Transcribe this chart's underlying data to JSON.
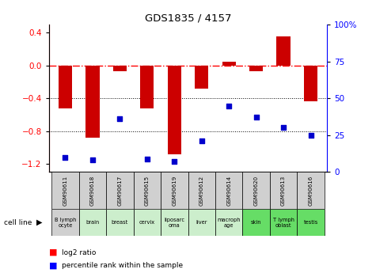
{
  "title": "GDS1835 / 4157",
  "samples": [
    "GSM90611",
    "GSM90618",
    "GSM90617",
    "GSM90615",
    "GSM90619",
    "GSM90612",
    "GSM90614",
    "GSM90620",
    "GSM90613",
    "GSM90616"
  ],
  "cell_lines": [
    "B lymph\nocyte",
    "brain",
    "breast",
    "cervix",
    "liposarc\noma",
    "liver",
    "macroph\nage",
    "skin",
    "T lymph\noblast",
    "testis"
  ],
  "cell_line_colors": [
    "#d0d0d0",
    "#cceecc",
    "#cceecc",
    "#cceecc",
    "#cceecc",
    "#cceecc",
    "#cceecc",
    "#66dd66",
    "#66dd66",
    "#66dd66"
  ],
  "log2_ratio": [
    -0.52,
    -0.88,
    -0.07,
    -0.52,
    -1.08,
    -0.28,
    0.05,
    -0.07,
    0.36,
    -0.44
  ],
  "percentile_rank": [
    10,
    8,
    36,
    9,
    7,
    21,
    45,
    37,
    30,
    25
  ],
  "bar_color": "#cc0000",
  "dot_color": "#0000cc",
  "ylim_left": [
    -1.3,
    0.5
  ],
  "ylim_right": [
    0,
    100
  ],
  "yticks_left": [
    0.4,
    0.0,
    -0.4,
    -0.8,
    -1.2
  ],
  "yticks_right": [
    100,
    75,
    50,
    25,
    0
  ],
  "legend_red": "log2 ratio",
  "legend_blue": "percentile rank within the sample"
}
